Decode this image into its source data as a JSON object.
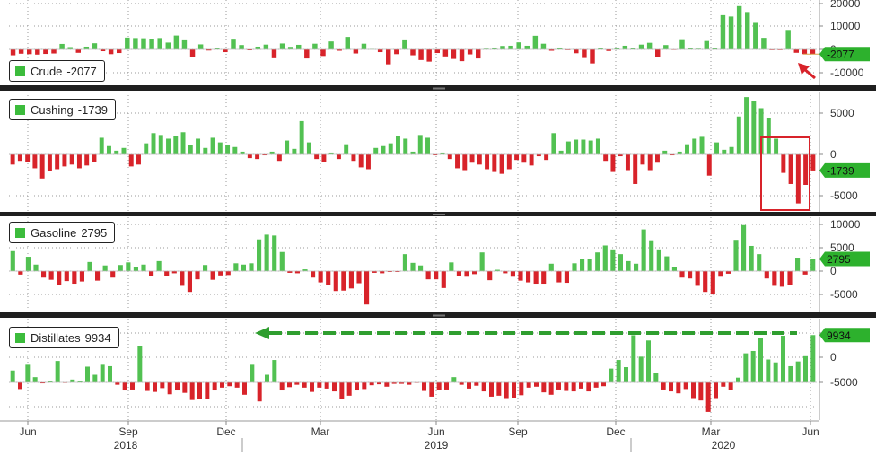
{
  "colors": {
    "positive": "#52c152",
    "negative": "#d8232a",
    "positive_label": "#2db12d",
    "negative_label": "#2db12d",
    "separator": "#1f1f1f",
    "annotation": "#d8232a",
    "arrow": "#2f9e2f",
    "grid": "#9a9a9a"
  },
  "x_axis": {
    "months": [
      "Jun",
      "Sep",
      "Dec",
      "Mar",
      "Jun",
      "Sep",
      "Dec",
      "Mar",
      "Jun"
    ],
    "years": [
      "2018",
      "2019",
      "2020"
    ]
  },
  "chart_data": [
    {
      "type": "bar",
      "panel": "crude",
      "name": "Crude",
      "last_value": -2077,
      "last_label": "-2077",
      "legend_value": "-2077",
      "y_ticks": [
        "20000",
        "10000",
        "0",
        "-10000"
      ],
      "ylim": [
        -13000,
        21000
      ],
      "values": [
        -2600,
        -1900,
        -2100,
        -2300,
        -2000,
        -1800,
        2400,
        1000,
        -1500,
        1200,
        2700,
        -800,
        -2100,
        -1600,
        5200,
        5000,
        4900,
        4600,
        5000,
        3000,
        6100,
        4000,
        -3500,
        2200,
        -500,
        500,
        -1200,
        4300,
        1900,
        -400,
        1200,
        2100,
        -3900,
        2600,
        1100,
        2000,
        -4000,
        2500,
        -2900,
        3500,
        -600,
        5500,
        -1800,
        2500,
        200,
        -1200,
        -6600,
        -2100,
        4000,
        -2600,
        -4700,
        -5400,
        -1600,
        -3100,
        -4200,
        -5200,
        -2200,
        -4000,
        300,
        800,
        1500,
        1600,
        3100,
        1600,
        6000,
        2500,
        -600,
        800,
        -300,
        -1700,
        -3800,
        -6200,
        600,
        -700,
        800,
        1600,
        700,
        2100,
        2900,
        -3300,
        1900,
        -200,
        4100,
        400,
        300,
        3700,
        500,
        15100,
        14500,
        19100,
        16500,
        11700,
        5100,
        -300,
        -300,
        8600,
        -1500,
        -2100,
        -2077
      ]
    },
    {
      "type": "bar",
      "panel": "cushing",
      "name": "Cushing",
      "last_value": -1739,
      "last_label": "-1739",
      "legend_value": "-1739",
      "y_ticks": [
        "5000",
        "0",
        "-5000"
      ],
      "ylim": [
        -6500,
        6600
      ],
      "values": [
        -1100,
        -700,
        -800,
        -1500,
        -2600,
        -1800,
        -1600,
        -1300,
        -1100,
        -1500,
        -1200,
        -800,
        1800,
        900,
        400,
        700,
        -1300,
        -1100,
        1200,
        2300,
        2100,
        1700,
        2000,
        2400,
        1000,
        1700,
        700,
        1800,
        1300,
        1000,
        800,
        300,
        -400,
        -500,
        -100,
        300,
        -700,
        1500,
        600,
        3600,
        1300,
        -500,
        -800,
        200,
        -500,
        1100,
        -700,
        -1400,
        -1600,
        700,
        900,
        1200,
        2000,
        1700,
        300,
        2100,
        1800,
        -100,
        200,
        -500,
        -1500,
        -1700,
        -900,
        -1100,
        -1600,
        -1900,
        -2100,
        -1600,
        -600,
        -900,
        -1200,
        -200,
        -600,
        2300,
        400,
        1400,
        1600,
        1600,
        1500,
        1700,
        -700,
        -1900,
        -200,
        -1700,
        -3200,
        -1100,
        -1700,
        -900,
        400,
        -100,
        300,
        1100,
        1700,
        1900,
        -2300,
        1300,
        500,
        800,
        4100,
        6200,
        5800,
        5000,
        3900,
        1700,
        -2000,
        -3200,
        -5300,
        -3300,
        -1739
      ]
    },
    {
      "type": "bar",
      "panel": "gasoline",
      "name": "Gasoline",
      "last_value": 2795,
      "last_label": "2795",
      "legend_value": "2795",
      "y_ticks": [
        "10000",
        "5000",
        "0",
        "-5000"
      ],
      "ylim": [
        -7800,
        12000
      ],
      "values": [
        4600,
        -800,
        3300,
        1500,
        -1500,
        -2000,
        -3300,
        -2300,
        -2900,
        -2400,
        2100,
        -2200,
        1300,
        -1500,
        1400,
        2000,
        900,
        1500,
        -1100,
        2300,
        -1200,
        -500,
        -3400,
        -4800,
        -1900,
        1400,
        -2000,
        -1000,
        -900,
        1800,
        1500,
        1800,
        7300,
        8400,
        8200,
        4400,
        -400,
        -500,
        400,
        -1500,
        -2600,
        -3300,
        -4600,
        -4500,
        -4000,
        -2800,
        -7700,
        -400,
        -500,
        -200,
        -200,
        3900,
        1900,
        1300,
        -1900,
        -1900,
        -3900,
        2000,
        -1100,
        -1300,
        -700,
        4300,
        -2100,
        300,
        -500,
        -1300,
        -2200,
        -2600,
        -2900,
        -2900,
        1700,
        -2600,
        -2700,
        1800,
        2700,
        2800,
        4300,
        5900,
        5000,
        3900,
        2300,
        1700,
        9600,
        7100,
        5000,
        3400,
        900,
        -1500,
        -1700,
        -3400,
        -4800,
        -5400,
        -1300,
        -600,
        7200,
        10600,
        5800,
        3900,
        -1700,
        -3400,
        -3600,
        -3300,
        3100,
        -800,
        2795
      ]
    },
    {
      "type": "bar",
      "panel": "distillates",
      "name": "Distillates",
      "last_value": 9934,
      "last_label": "9934",
      "legend_value": "9934",
      "y_ticks": [
        "5000",
        "0",
        "-5000"
      ],
      "ylim": [
        -6500,
        13000
      ],
      "values": [
        2500,
        -1400,
        3700,
        1100,
        -200,
        300,
        4500,
        -100,
        600,
        300,
        3300,
        1600,
        3700,
        3400,
        -500,
        -1700,
        -1500,
        7600,
        -1800,
        -2000,
        -1200,
        -2500,
        -1700,
        -2200,
        -3700,
        -3400,
        -3400,
        -1700,
        -1100,
        -800,
        -1100,
        -2600,
        3700,
        -4000,
        1600,
        4700,
        -1700,
        -1000,
        -500,
        -1100,
        -2000,
        -1100,
        -1300,
        -1900,
        -3500,
        -2800,
        -1700,
        -1400,
        -600,
        -400,
        -900,
        -300,
        -300,
        -500,
        -100,
        -1800,
        -3000,
        -1600,
        -1500,
        1100,
        -500,
        -1300,
        -700,
        -1900,
        -3000,
        -2800,
        -3300,
        -3200,
        -2700,
        -1100,
        -900,
        -2100,
        -2600,
        -1500,
        -1800,
        -1900,
        -1300,
        -1900,
        -1100,
        -800,
        2900,
        4700,
        3200,
        9900,
        5400,
        8800,
        1900,
        -1500,
        -1900,
        -2300,
        -1400,
        -3300,
        -3800,
        -6200,
        -3300,
        -900,
        -1600,
        1000,
        6100,
        6600,
        9400,
        4800,
        4200,
        9800,
        3400,
        4400,
        5500,
        9934
      ]
    }
  ]
}
